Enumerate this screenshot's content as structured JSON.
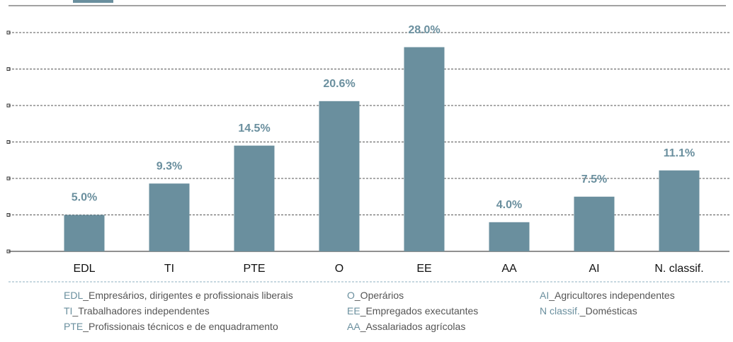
{
  "chart_data": {
    "type": "bar",
    "categories": [
      "EDL",
      "TI",
      "PTE",
      "O",
      "EE",
      "AA",
      "AI",
      "N. classif."
    ],
    "values": [
      5.0,
      9.3,
      14.5,
      20.6,
      28.0,
      4.0,
      7.5,
      11.1
    ],
    "value_labels": [
      "5.0%",
      "9.3%",
      "14.5%",
      "20.6%",
      "28.0%",
      "4.0%",
      "7.5%",
      "11.1%"
    ],
    "color": "#6a8f9e",
    "ylim": [
      0,
      30
    ],
    "yticks": [
      0,
      5,
      10,
      15,
      20,
      25,
      30
    ],
    "grid": true,
    "legend_items": [
      {
        "abbr": "EDL",
        "text": "_Empresários, dirigentes e profissionais liberais"
      },
      {
        "abbr": "TI",
        "text": "_Trabalhadores independentes"
      },
      {
        "abbr": "PTE",
        "text": "_Profissionais técnicos e de enquadramento"
      },
      {
        "abbr": "O",
        "text": "_Operários"
      },
      {
        "abbr": "EE",
        "text": "_Empregados executantes"
      },
      {
        "abbr": "AA",
        "text": "_Assalariados agrícolas"
      },
      {
        "abbr": "AI",
        "text": "_Agricultores independentes"
      },
      {
        "abbr": "N classif.",
        "text": "_Domésticas"
      }
    ]
  }
}
